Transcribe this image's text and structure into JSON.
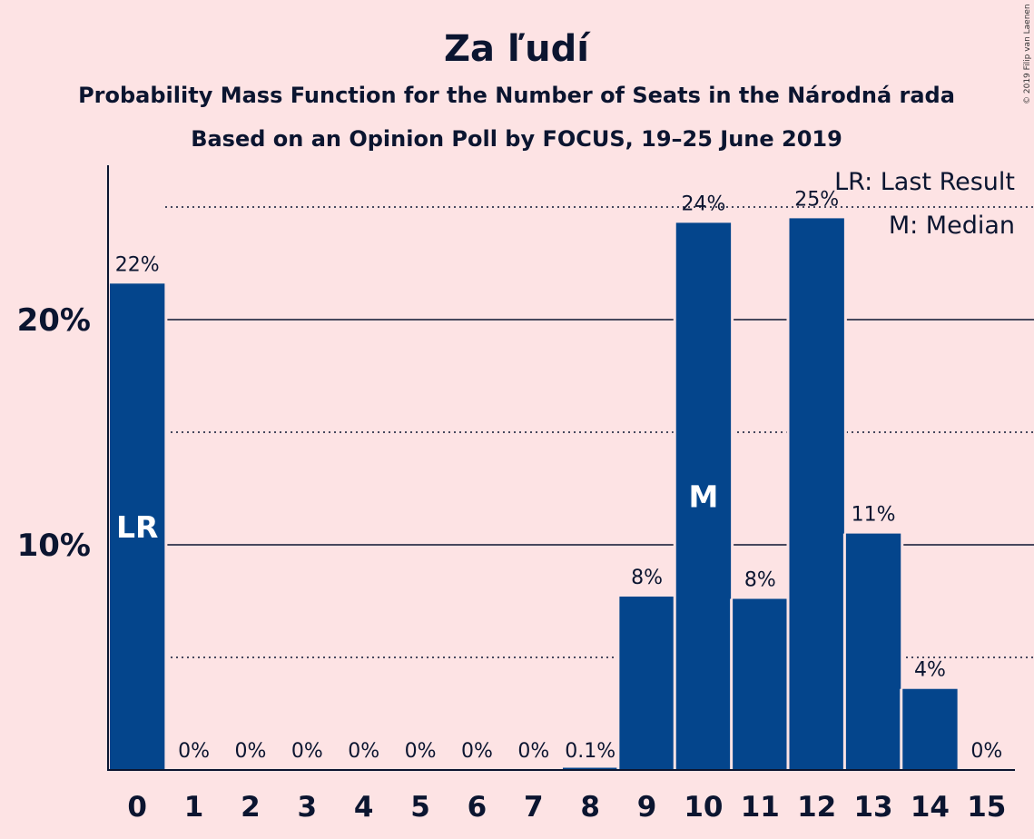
{
  "chart_data": {
    "type": "bar",
    "title": "Za ľudí",
    "subtitle_lines": [
      "Probability Mass Function for the Number of Seats in the Národná rada",
      "Based on an Opinion Poll by FOCUS, 19–25 June 2019"
    ],
    "categories": [
      "0",
      "1",
      "2",
      "3",
      "4",
      "5",
      "6",
      "7",
      "8",
      "9",
      "10",
      "11",
      "12",
      "13",
      "14",
      "15"
    ],
    "values": [
      21.6,
      0,
      0,
      0,
      0,
      0,
      0,
      0,
      0.1,
      7.7,
      24.3,
      7.6,
      24.5,
      10.5,
      3.6,
      0
    ],
    "data_labels": [
      "22%",
      "0%",
      "0%",
      "0%",
      "0%",
      "0%",
      "0%",
      "0%",
      "0.1%",
      "8%",
      "24%",
      "8%",
      "25%",
      "11%",
      "4%",
      "0%"
    ],
    "ylim": [
      0,
      26.8
    ],
    "yticks": [
      {
        "value": 10,
        "label": "10%"
      },
      {
        "value": 20,
        "label": "20%"
      }
    ],
    "minor_gridlines": [
      5,
      15,
      25
    ],
    "grid": true,
    "bar_color": "#04458c",
    "annotations": [
      {
        "category": "0",
        "text": "LR"
      },
      {
        "category": "10",
        "text": "M"
      }
    ],
    "legend": {
      "placement": "top-right",
      "entries": [
        "LR: Last Result",
        "M: Median"
      ]
    },
    "credit": "© 2019 Filip van Laenen"
  }
}
